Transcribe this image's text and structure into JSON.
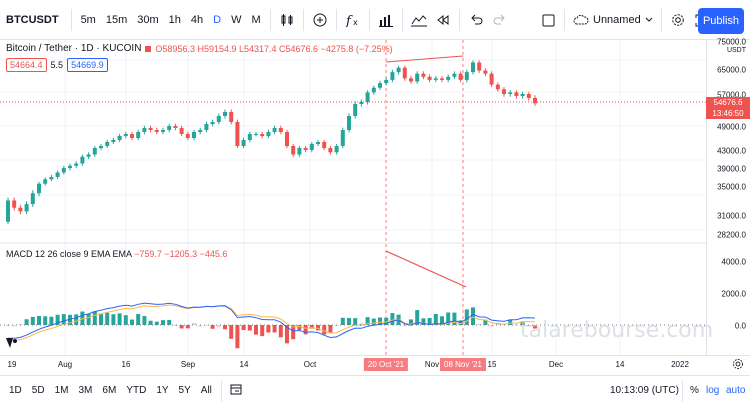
{
  "toolbar": {
    "symbol": "BTCUSDT",
    "intervals": [
      "5m",
      "15m",
      "30m",
      "1h",
      "4h",
      "D",
      "W",
      "M"
    ],
    "active_interval": "D",
    "layout_name": "Unnamed",
    "publish_label": "Publish"
  },
  "legend": {
    "title": "Bitcoin / Tether · 1D · KUCOIN",
    "ohlc": "O58956.3 H59154.9 L54317.4 C54676.6 −4275.8 (−7.25%)",
    "price_box": "54664.4",
    "spread": "5.5",
    "price_box2": "54669.9"
  },
  "macd": {
    "label": "MACD 12 26 close 9 EMA EMA",
    "values": "−759.7  −1205.3  −445.6"
  },
  "watermark": "talarebourse.com",
  "price_axis": {
    "unit": "USDT",
    "ticks": [
      "75000.0",
      "65000.0",
      "57000.0",
      "49000.0",
      "43000.0",
      "39000.0",
      "35000.0",
      "31000.0",
      "28200.0"
    ],
    "current": "54676.6",
    "countdown": "13:46:50",
    "macd_ticks": [
      "4000.0",
      "2000.0",
      "0.0"
    ]
  },
  "time_axis": {
    "ticks": [
      "19",
      "Aug",
      "16",
      "Sep",
      "14",
      "Oct",
      "Nov",
      "15",
      "Dec",
      "14",
      "2022"
    ],
    "tag1": "20 Oct '21",
    "tag2": "08 Nov '21"
  },
  "bottombar": {
    "ranges": [
      "1D",
      "5D",
      "1M",
      "3M",
      "6M",
      "YTD",
      "1Y",
      "5Y",
      "All"
    ],
    "clock": "10:13:09 (UTC)",
    "pct": "%",
    "log": "log",
    "auto": "auto"
  },
  "chart_data": {
    "type": "candlestick",
    "candles_close": [
      33000,
      32000,
      31500,
      32500,
      34000,
      35500,
      36500,
      37000,
      38000,
      39000,
      39500,
      40000,
      41500,
      42000,
      43500,
      44000,
      45000,
      45500,
      46500,
      47000,
      46000,
      47500,
      48500,
      48000,
      47500,
      48000,
      49000,
      48500,
      47000,
      46000,
      47500,
      48000,
      49500,
      50000,
      51500,
      52500,
      50000,
      44000,
      45500,
      47000,
      47000,
      46500,
      47500,
      48500,
      47500,
      44000,
      42000,
      43500,
      43000,
      44500,
      45000,
      43500,
      42500,
      44000,
      48000,
      51500,
      54500,
      55000,
      57500,
      59000,
      60500,
      61500,
      64000,
      65500,
      62000,
      61000,
      63500,
      62500,
      61500,
      62000,
      61500,
      62500,
      63500,
      61500,
      64000,
      67500,
      64500,
      63500,
      60000,
      58500,
      57000,
      57500,
      56500,
      57000,
      56000,
      54676
    ]
  }
}
